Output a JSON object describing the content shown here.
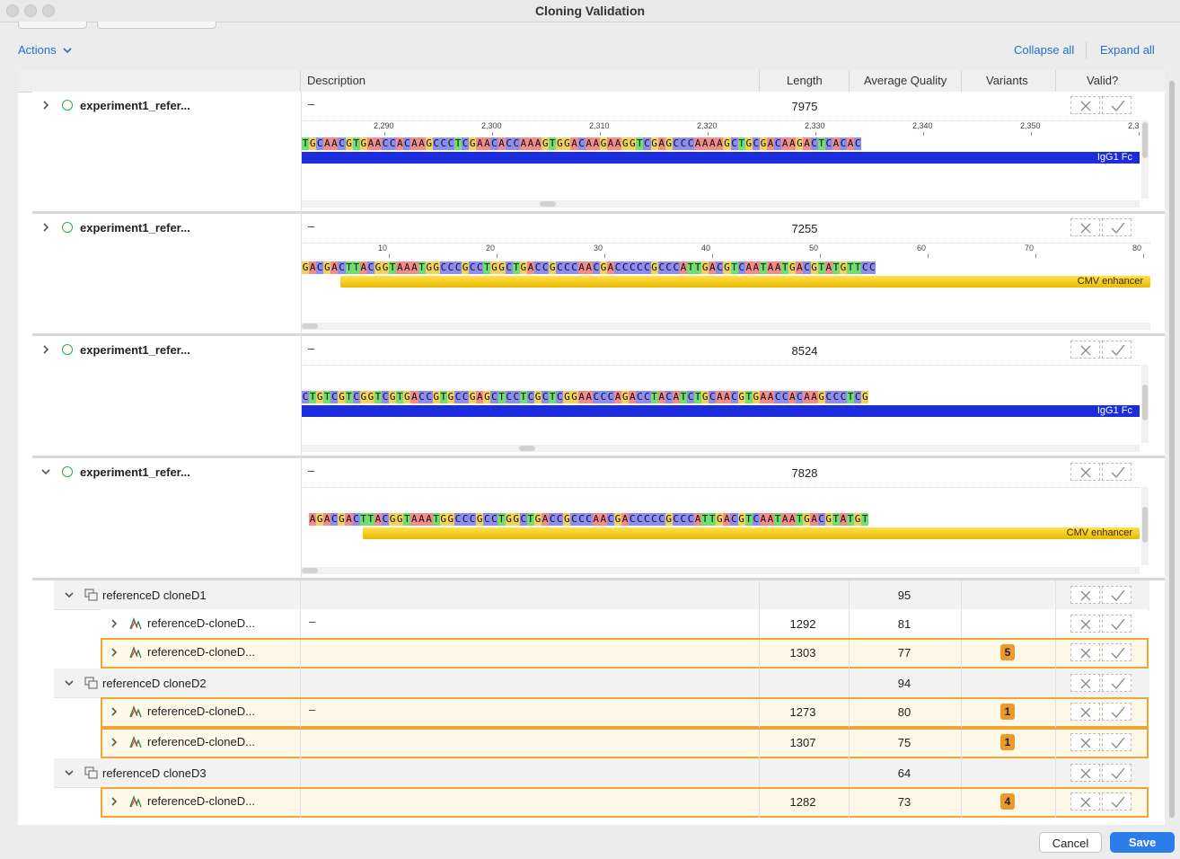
{
  "window": {
    "title": "Cloning Validation"
  },
  "toolbar": {
    "actions_label": "Actions",
    "collapse_all": "Collapse all",
    "expand_all": "Expand all"
  },
  "columns": {
    "description": "Description",
    "length": "Length",
    "avg_quality": "Average Quality",
    "variants": "Variants",
    "valid": "Valid?"
  },
  "references": [
    {
      "name": "experiment1_refer...",
      "description": "–",
      "length": "7975",
      "expanded": false,
      "ruler": [
        "2,290",
        "2,300",
        "2,310",
        "2,320",
        "2,330",
        "2,340",
        "2,350",
        "2,3"
      ],
      "sequence": "TGCAACGTGAACCACAAGCCCTCGAACACCAAAGTGGACAAGAAGGTCGAGCCCAAAAGCTGCGACAAGACTCACAC",
      "feature": {
        "label": "IgG1 Fc",
        "color": "blue"
      }
    },
    {
      "name": "experiment1_refer...",
      "description": "–",
      "length": "7255",
      "expanded": false,
      "ruler": [
        "10",
        "20",
        "30",
        "40",
        "50",
        "60",
        "70",
        "80"
      ],
      "sequence": "GACGACTTACGGTAAATGGCCCGCCTGGCTGACCGCCCAACGACCCCCGCCCATTGACGTCAATAATGACGTATGTTCC",
      "feature": {
        "label": "CMV enhancer",
        "color": "yellow"
      }
    },
    {
      "name": "experiment1_refer...",
      "description": "–",
      "length": "8524",
      "expanded": false,
      "ruler": [],
      "sequence": "CTGTCGTCGGTCGTGACCGTGCCGAGCTCCTCGCTCGGAACCCAGACCTACATCTGCAACGTGAACCACAAGCCCTCG",
      "feature": {
        "label": "IgG1 Fc",
        "color": "blue"
      }
    },
    {
      "name": "experiment1_refer...",
      "description": "–",
      "length": "7828",
      "expanded": true,
      "ruler": [],
      "sequence": "AGACGACTTACGGTAAATGGCCCGCCTGGCTGACCGCCCAACGACCCCCGCCCATTGACGTCAATAATGACGTATGT",
      "feature": {
        "label": "CMV enhancer",
        "color": "yellow"
      }
    }
  ],
  "groups": [
    {
      "name": "referenceD cloneD1",
      "avg_quality": "95",
      "clones": [
        {
          "name": "referenceD-cloneD...",
          "description": "–",
          "length": "1292",
          "avg_quality": "81",
          "variants": "",
          "highlight": false
        },
        {
          "name": "referenceD-cloneD...",
          "description": "",
          "length": "1303",
          "avg_quality": "77",
          "variants": "5",
          "highlight": true
        }
      ]
    },
    {
      "name": "referenceD cloneD2",
      "avg_quality": "94",
      "clones": [
        {
          "name": "referenceD-cloneD...",
          "description": "–",
          "length": "1273",
          "avg_quality": "80",
          "variants": "1",
          "highlight": true
        },
        {
          "name": "referenceD-cloneD...",
          "description": "",
          "length": "1307",
          "avg_quality": "75",
          "variants": "1",
          "highlight": true
        }
      ]
    },
    {
      "name": "referenceD cloneD3",
      "avg_quality": "64",
      "clones": [
        {
          "name": "referenceD-cloneD...",
          "description": "",
          "length": "1282",
          "avg_quality": "73",
          "variants": "4",
          "highlight": true
        }
      ]
    }
  ],
  "footer": {
    "cancel": "Cancel",
    "save": "Save"
  },
  "colors": {
    "accent": "#2b7de9",
    "highlight_border": "#f0a630",
    "badge": "#ec9a2c",
    "status_circle": "#2fa84f"
  }
}
